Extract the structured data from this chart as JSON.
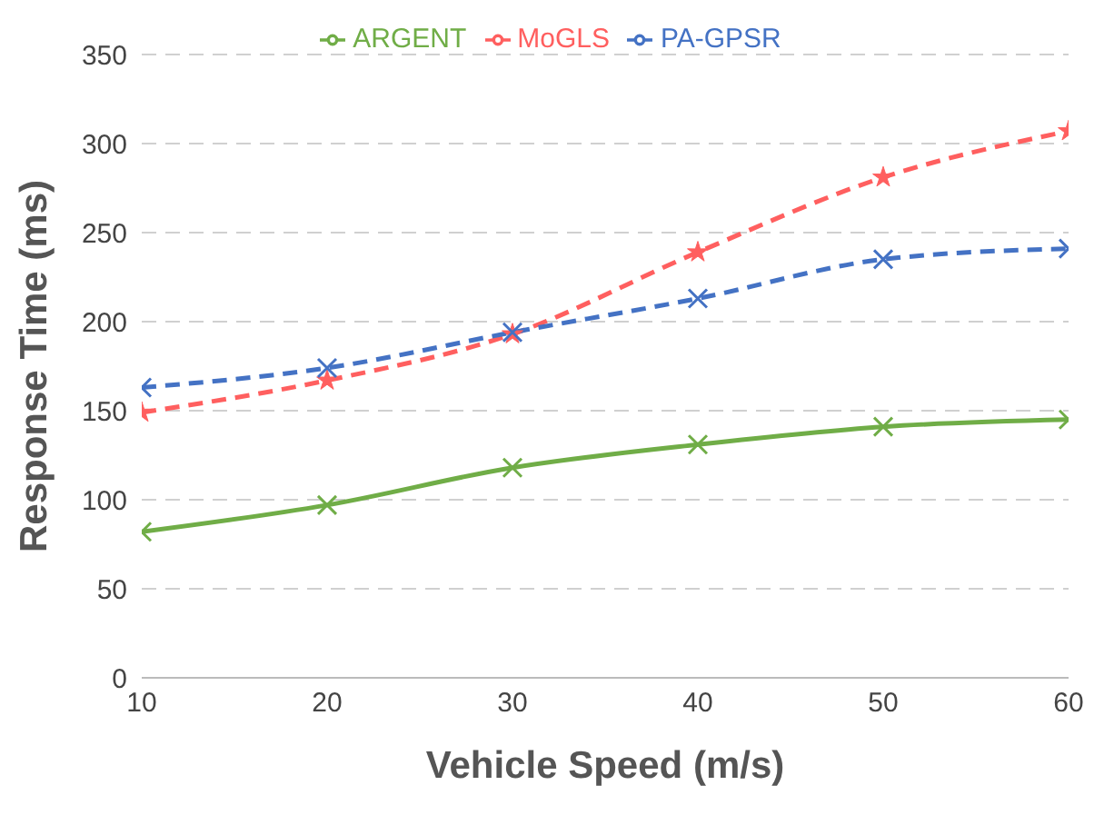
{
  "chart_data": {
    "type": "line",
    "xlabel": "Vehicle Speed (m/s)",
    "ylabel": "Response Time (ms)",
    "x": [
      10,
      20,
      30,
      40,
      50,
      60
    ],
    "xlim": [
      10,
      60
    ],
    "xticks": [
      10,
      20,
      30,
      40,
      50,
      60
    ],
    "ylim": [
      0,
      350
    ],
    "yticks": [
      0,
      50,
      100,
      150,
      200,
      250,
      300,
      350
    ],
    "grid": "y",
    "legend": "top",
    "series": [
      {
        "name": "ARGENT",
        "color": "#70ad47",
        "values": [
          82,
          97,
          118,
          131,
          141,
          145
        ],
        "marker": "cross",
        "line_style": "solid"
      },
      {
        "name": "MoGLS",
        "color": "#ff5f5f",
        "values": [
          149,
          167,
          193,
          239,
          281,
          307
        ],
        "marker": "star",
        "line_style": "dashed"
      },
      {
        "name": "PA-GPSR",
        "color": "#4472c4",
        "values": [
          163,
          174,
          194,
          213,
          235,
          241
        ],
        "marker": "cross",
        "line_style": "dashed"
      }
    ]
  }
}
